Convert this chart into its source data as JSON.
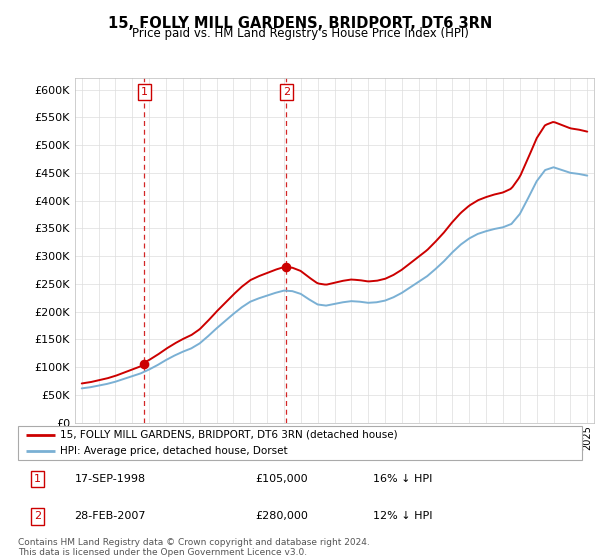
{
  "title": "15, FOLLY MILL GARDENS, BRIDPORT, DT6 3RN",
  "subtitle": "Price paid vs. HM Land Registry's House Price Index (HPI)",
  "footer": "Contains HM Land Registry data © Crown copyright and database right 2024.\nThis data is licensed under the Open Government Licence v3.0.",
  "legend_line1": "15, FOLLY MILL GARDENS, BRIDPORT, DT6 3RN (detached house)",
  "legend_line2": "HPI: Average price, detached house, Dorset",
  "sale1_date": "17-SEP-1998",
  "sale1_price": "£105,000",
  "sale1_hpi": "16% ↓ HPI",
  "sale2_date": "28-FEB-2007",
  "sale2_price": "£280,000",
  "sale2_hpi": "12% ↓ HPI",
  "red_color": "#cc0000",
  "blue_color": "#7ab0d4",
  "grid_color": "#dddddd",
  "ylim": [
    0,
    620000
  ],
  "yticks": [
    0,
    50000,
    100000,
    150000,
    200000,
    250000,
    300000,
    350000,
    400000,
    450000,
    500000,
    550000,
    600000
  ],
  "hpi_x": [
    1995.0,
    1995.5,
    1996.0,
    1996.5,
    1997.0,
    1997.5,
    1998.0,
    1998.5,
    1999.0,
    1999.5,
    2000.0,
    2000.5,
    2001.0,
    2001.5,
    2002.0,
    2002.5,
    2003.0,
    2003.5,
    2004.0,
    2004.5,
    2005.0,
    2005.5,
    2006.0,
    2006.5,
    2007.0,
    2007.5,
    2008.0,
    2008.5,
    2009.0,
    2009.5,
    2010.0,
    2010.5,
    2011.0,
    2011.5,
    2012.0,
    2012.5,
    2013.0,
    2013.5,
    2014.0,
    2014.5,
    2015.0,
    2015.5,
    2016.0,
    2016.5,
    2017.0,
    2017.5,
    2018.0,
    2018.5,
    2019.0,
    2019.5,
    2020.0,
    2020.5,
    2021.0,
    2021.5,
    2022.0,
    2022.5,
    2023.0,
    2023.5,
    2024.0,
    2024.5,
    2025.0
  ],
  "hpi_y": [
    62000,
    64000,
    67000,
    70000,
    74000,
    79000,
    84000,
    89000,
    96000,
    104000,
    113000,
    121000,
    128000,
    134000,
    143000,
    156000,
    170000,
    183000,
    196000,
    208000,
    218000,
    224000,
    229000,
    234000,
    238000,
    237000,
    232000,
    222000,
    213000,
    211000,
    214000,
    217000,
    219000,
    218000,
    216000,
    217000,
    220000,
    226000,
    234000,
    244000,
    254000,
    264000,
    277000,
    291000,
    307000,
    321000,
    332000,
    340000,
    345000,
    349000,
    352000,
    358000,
    376000,
    405000,
    435000,
    455000,
    460000,
    455000,
    450000,
    448000,
    445000
  ],
  "sale1_x": 1998.71,
  "sale1_y": 105000,
  "sale2_x": 2007.15,
  "sale2_y": 280000,
  "xlim_left": 1994.6,
  "xlim_right": 2025.4
}
